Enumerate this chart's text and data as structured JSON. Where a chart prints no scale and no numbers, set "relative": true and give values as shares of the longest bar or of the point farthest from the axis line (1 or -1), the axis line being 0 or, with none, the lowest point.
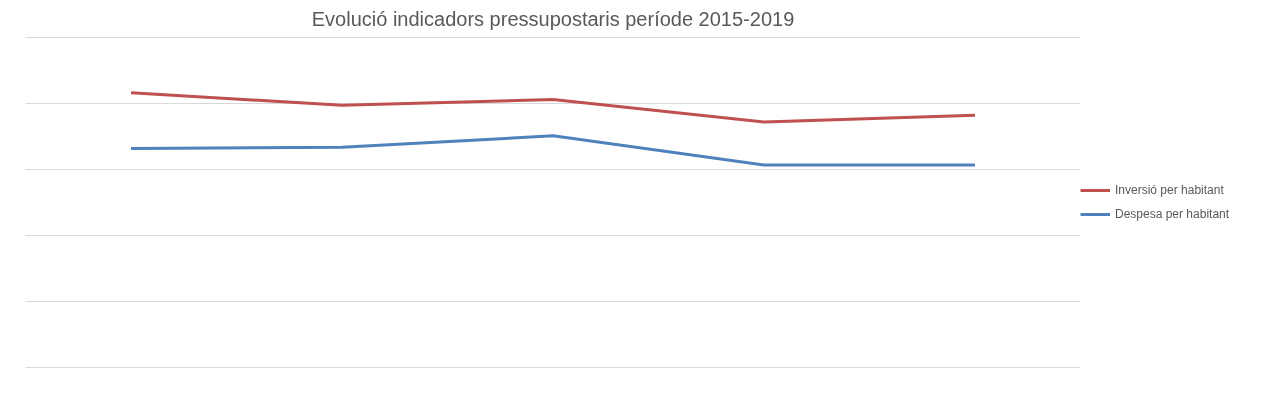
{
  "chart_data": {
    "type": "line",
    "title": "Evolució indicadors pressupostaris període 2015-2019",
    "relative": true,
    "categories": [
      null,
      null,
      null,
      null,
      null
    ],
    "grid": "y",
    "legend": "right",
    "marker": "none",
    "line_style": "solid",
    "series": [
      {
        "name": "Inversió per habitant",
        "color": "#c0504d",
        "values": [
          1,
          0.954,
          0.975,
          0.893,
          0.918
        ]
      },
      {
        "name": "Despesa per habitant",
        "color": "#4f81bd",
        "values": [
          0.797,
          0.801,
          0.843,
          0.737,
          0.737
        ]
      }
    ]
  }
}
